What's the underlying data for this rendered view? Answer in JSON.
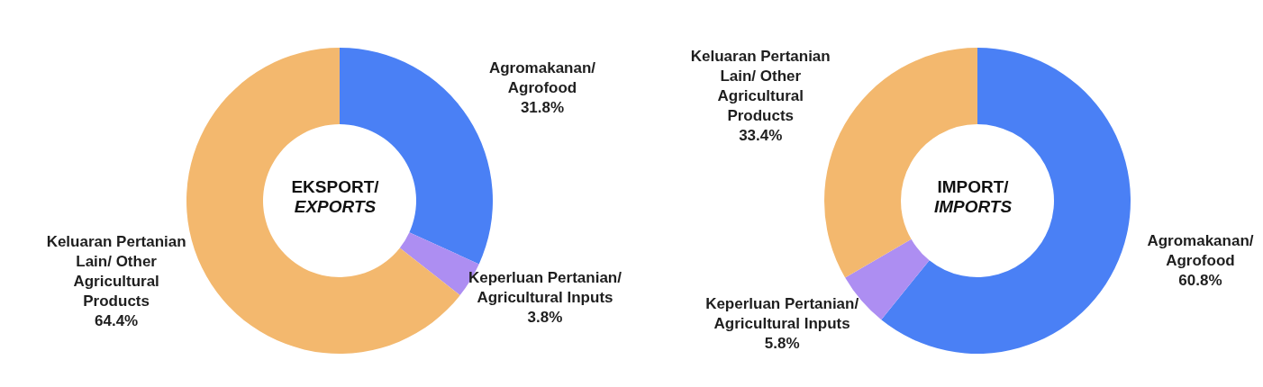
{
  "chart_data": [
    {
      "type": "donut",
      "title": "EKSPORT/",
      "subtitle": "EXPORTS",
      "categories": [
        "Agromakanan/ Agrofood",
        "Keperluan Pertanian/ Agricultural Inputs",
        "Keluaran Pertanian Lain/ Other Agricultural Products"
      ],
      "values": [
        31.8,
        3.8,
        64.4
      ],
      "value_labels": [
        "31.8%",
        "3.8%",
        "64.4%"
      ],
      "colors": [
        "#4a80f5",
        "#ad8ef2",
        "#f3b86e"
      ]
    },
    {
      "type": "donut",
      "title": "IMPORT/",
      "subtitle": "IMPORTS",
      "categories": [
        "Agromakanan/ Agrofood",
        "Keperluan Pertanian/ Agricultural Inputs",
        "Keluaran Pertanian Lain/ Other Agricultural Products"
      ],
      "values": [
        60.8,
        5.8,
        33.4
      ],
      "value_labels": [
        "60.8%",
        "5.8%",
        "33.4%"
      ],
      "colors": [
        "#4a80f5",
        "#ad8ef2",
        "#f3b86e"
      ]
    }
  ]
}
